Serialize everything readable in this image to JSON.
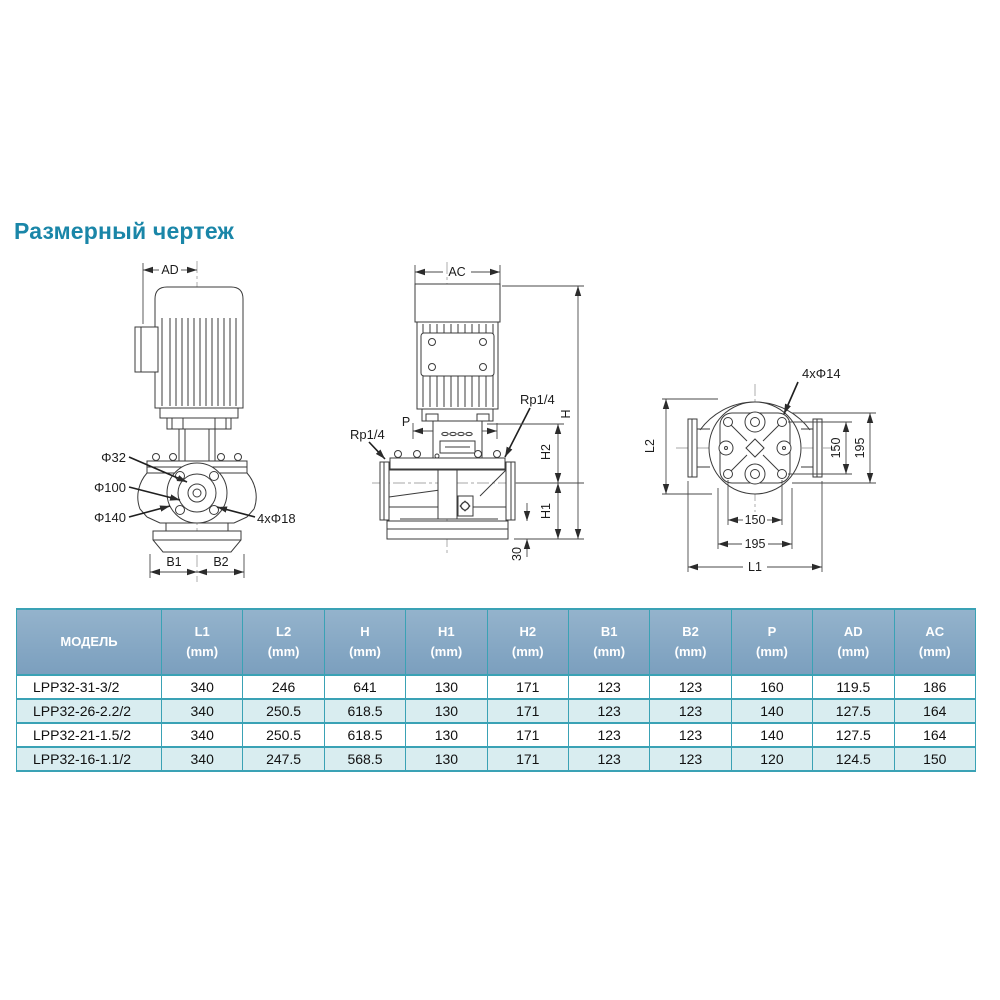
{
  "page": {
    "title": "Размерный чертеж"
  },
  "colors": {
    "title": "#1a86a8",
    "table_border": "#3aa2b5",
    "table_header_bg": "#7b9fbe",
    "table_header_bg_light": "#94b3cc",
    "table_row_alt": "#d9edf0",
    "drawing_line": "#3b3b3b"
  },
  "drawings": {
    "front_view": {
      "labels": {
        "ad": "AD",
        "d32": "Φ32",
        "d100": "Φ100",
        "d140": "Φ140",
        "bolt_holes": "4xΦ18",
        "b1": "B1",
        "b2": "B2"
      }
    },
    "side_view": {
      "labels": {
        "ac": "AC",
        "rp_left": "Rp1/4",
        "rp_right": "Rp1/4",
        "p": "P",
        "h": "H",
        "h2": "H2",
        "h1": "H1",
        "base_height": "30"
      }
    },
    "top_view": {
      "labels": {
        "bolt_holes": "4xΦ14",
        "l2": "L2",
        "bolt_spacing_v": "150",
        "plate_v": "195",
        "bolt_spacing_h": "150",
        "plate_h": "195",
        "l1": "L1"
      }
    }
  },
  "table": {
    "columns": [
      {
        "label": "МОДЕЛЬ",
        "unit": ""
      },
      {
        "label": "L1",
        "unit": "(mm)"
      },
      {
        "label": "L2",
        "unit": "(mm)"
      },
      {
        "label": "H",
        "unit": "(mm)"
      },
      {
        "label": "H1",
        "unit": "(mm)"
      },
      {
        "label": "H2",
        "unit": "(mm)"
      },
      {
        "label": "B1",
        "unit": "(mm)"
      },
      {
        "label": "B2",
        "unit": "(mm)"
      },
      {
        "label": "P",
        "unit": "(mm)"
      },
      {
        "label": "AD",
        "unit": "(mm)"
      },
      {
        "label": "AC",
        "unit": "(mm)"
      }
    ],
    "rows": [
      {
        "model": "LPP32-31-3/2",
        "values": [
          "340",
          "246",
          "641",
          "130",
          "171",
          "123",
          "123",
          "160",
          "119.5",
          "186"
        ]
      },
      {
        "model": "LPP32-26-2.2/2",
        "values": [
          "340",
          "250.5",
          "618.5",
          "130",
          "171",
          "123",
          "123",
          "140",
          "127.5",
          "164"
        ]
      },
      {
        "model": "LPP32-21-1.5/2",
        "values": [
          "340",
          "250.5",
          "618.5",
          "130",
          "171",
          "123",
          "123",
          "140",
          "127.5",
          "164"
        ]
      },
      {
        "model": "LPP32-16-1.1/2",
        "values": [
          "340",
          "247.5",
          "568.5",
          "130",
          "171",
          "123",
          "123",
          "120",
          "124.5",
          "150"
        ]
      }
    ]
  }
}
